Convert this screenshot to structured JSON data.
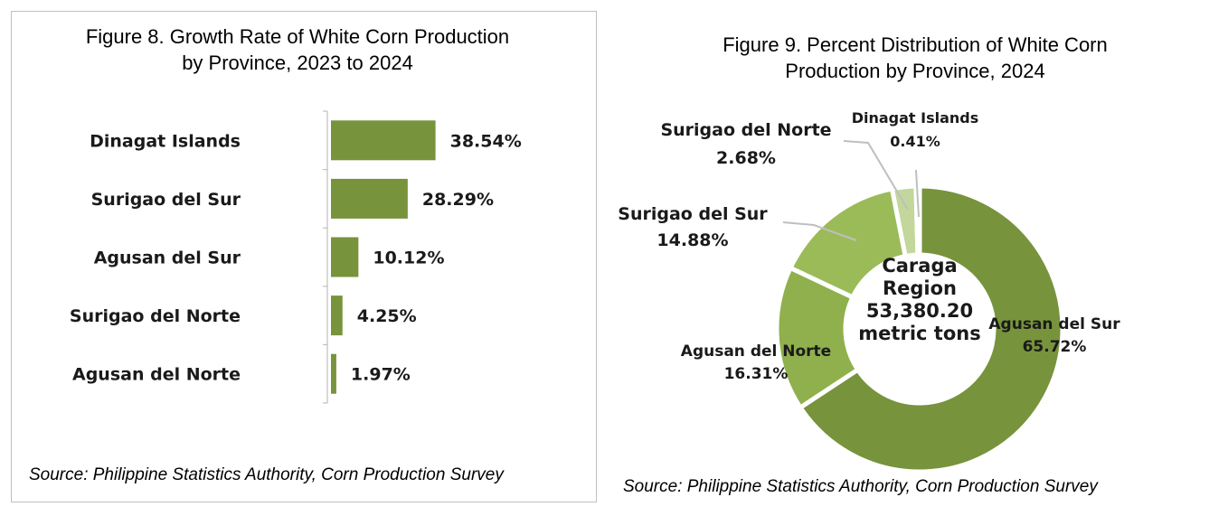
{
  "chart_data": [
    {
      "type": "bar",
      "orientation": "horizontal",
      "title": "Figure 8. Growth Rate of White Corn Production by Province, 2023 to 2024",
      "title_lines": [
        "Figure 8. Growth Rate of White Corn Production",
        "by Province, 2023 to 2024"
      ],
      "categories": [
        "Dinagat Islands",
        "Surigao del Sur",
        "Agusan del Sur",
        "Surigao del Norte",
        "Agusan del Norte"
      ],
      "values": [
        38.54,
        28.29,
        10.12,
        4.25,
        1.97
      ],
      "value_labels": [
        "38.54%",
        "28.29%",
        "10.12%",
        "4.25%",
        "1.97%"
      ],
      "xlim": [
        0,
        40
      ],
      "grid": false,
      "bar_color": "#77933c",
      "source": "Source: Philippine Statistics Authority, Corn Production Survey"
    },
    {
      "type": "pie",
      "variant": "donut",
      "title": "Figure 9.  Percent Distribution of White Corn Production by Province, 2024",
      "title_lines": [
        "Figure 9.  Percent Distribution of White Corn",
        "Production by Province, 2024"
      ],
      "slices": [
        {
          "label": "Agusan del Sur",
          "value": 65.72,
          "value_label": "65.72%",
          "color": "#77933c"
        },
        {
          "label": "Agusan del Norte",
          "value": 16.31,
          "value_label": "16.31%",
          "color": "#8fb04c"
        },
        {
          "label": "Surigao del Sur",
          "value": 14.88,
          "value_label": "14.88%",
          "color": "#9bbb59"
        },
        {
          "label": "Surigao del Norte",
          "value": 2.68,
          "value_label": "2.68%",
          "color": "#c3d69b"
        },
        {
          "label": "Dinagat Islands",
          "value": 0.41,
          "value_label": "0.41%",
          "color": "#d7e4bd"
        }
      ],
      "center_lines": [
        "Caraga",
        "Region",
        "53,380.20",
        "metric tons"
      ],
      "legend": "none",
      "source": "Source: Philippine Statistics Authority, Corn Production Survey"
    }
  ]
}
